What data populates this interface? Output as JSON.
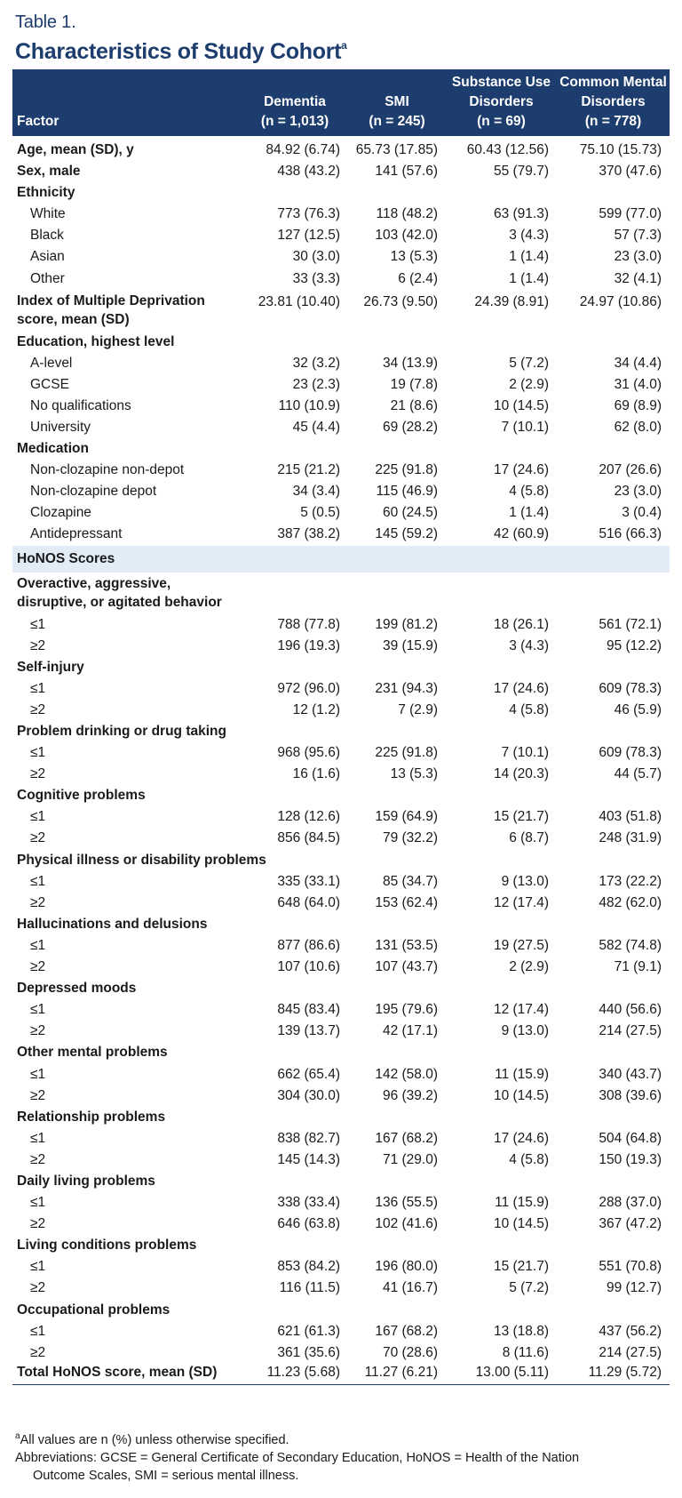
{
  "table_label": "Table 1.",
  "title": "Characteristics of Study Cohort",
  "title_superscript": "a",
  "header": {
    "factor": "Factor",
    "columns": [
      {
        "name": [
          "Dementia"
        ],
        "n": "(n = 1,013)"
      },
      {
        "name": [
          "SMI"
        ],
        "n": "(n = 245)"
      },
      {
        "name": [
          "Substance Use",
          "Disorders"
        ],
        "n": "(n = 69)"
      },
      {
        "name": [
          "Common Mental",
          "Disorders"
        ],
        "n": "(n = 778)"
      }
    ]
  },
  "rows": [
    {
      "label": "Age, mean (SD), y",
      "type": "bold",
      "values": [
        "84.92 (6.74)",
        "65.73 (17.85)",
        "60.43 (12.56)",
        "75.10 (15.73)"
      ]
    },
    {
      "label": "Sex, male",
      "type": "bold",
      "values": [
        "438 (43.2)",
        "141 (57.6)",
        "55 (79.7)",
        "370 (47.6)"
      ]
    },
    {
      "label": "Ethnicity",
      "type": "group"
    },
    {
      "label": "White",
      "type": "sub",
      "values": [
        "773 (76.3)",
        "118 (48.2)",
        "63 (91.3)",
        "599 (77.0)"
      ]
    },
    {
      "label": "Black",
      "type": "sub",
      "values": [
        "127 (12.5)",
        "103 (42.0)",
        "3 (4.3)",
        "57 (7.3)"
      ]
    },
    {
      "label": "Asian",
      "type": "sub",
      "values": [
        "30 (3.0)",
        "13 (5.3)",
        "1 (1.4)",
        "23 (3.0)"
      ]
    },
    {
      "label": "Other",
      "type": "sub",
      "values": [
        "33 (3.3)",
        "6 (2.4)",
        "1 (1.4)",
        "32 (4.1)"
      ]
    },
    {
      "label": "Index of Multiple Deprivation score, mean (SD)",
      "type": "bold-wrap",
      "values": [
        "23.81 (10.40)",
        "26.73 (9.50)",
        "24.39 (8.91)",
        "24.97 (10.86)"
      ]
    },
    {
      "label": "Education, highest level",
      "type": "group"
    },
    {
      "label": "A-level",
      "type": "sub",
      "values": [
        "32 (3.2)",
        "34 (13.9)",
        "5 (7.2)",
        "34 (4.4)"
      ]
    },
    {
      "label": "GCSE",
      "type": "sub",
      "values": [
        "23 (2.3)",
        "19 (7.8)",
        "2 (2.9)",
        "31 (4.0)"
      ]
    },
    {
      "label": "No qualifications",
      "type": "sub",
      "values": [
        "110 (10.9)",
        "21 (8.6)",
        "10 (14.5)",
        "69 (8.9)"
      ]
    },
    {
      "label": "University",
      "type": "sub",
      "values": [
        "45 (4.4)",
        "69 (28.2)",
        "7 (10.1)",
        "62 (8.0)"
      ]
    },
    {
      "label": "Medication",
      "type": "group"
    },
    {
      "label": "Non-clozapine non-depot",
      "type": "sub",
      "values": [
        "215 (21.2)",
        "225 (91.8)",
        "17 (24.6)",
        "207 (26.6)"
      ]
    },
    {
      "label": "Non-clozapine depot",
      "type": "sub",
      "values": [
        "34 (3.4)",
        "115 (46.9)",
        "4 (5.8)",
        "23 (3.0)"
      ]
    },
    {
      "label": "Clozapine",
      "type": "sub",
      "values": [
        "5 (0.5)",
        "60 (24.5)",
        "1 (1.4)",
        "3 (0.4)"
      ]
    },
    {
      "label": "Antidepressant",
      "type": "sub",
      "values": [
        "387 (38.2)",
        "145 (59.2)",
        "42 (60.9)",
        "516 (66.3)"
      ]
    },
    {
      "label": "HoNOS Scores",
      "type": "section"
    },
    {
      "label": "Overactive, aggressive, disruptive, or agitated behavior",
      "type": "group-wrap"
    },
    {
      "label": "≤1",
      "type": "sub",
      "values": [
        "788 (77.8)",
        "199 (81.2)",
        "18 (26.1)",
        "561 (72.1)"
      ]
    },
    {
      "label": "≥2",
      "type": "sub",
      "values": [
        "196 (19.3)",
        "39 (15.9)",
        "3 (4.3)",
        "95 (12.2)"
      ]
    },
    {
      "label": "Self-injury",
      "type": "group"
    },
    {
      "label": "≤1",
      "type": "sub",
      "values": [
        "972 (96.0)",
        "231 (94.3)",
        "17 (24.6)",
        "609 (78.3)"
      ]
    },
    {
      "label": "≥2",
      "type": "sub",
      "values": [
        "12 (1.2)",
        "7 (2.9)",
        "4 (5.8)",
        "46 (5.9)"
      ]
    },
    {
      "label": "Problem drinking or drug taking",
      "type": "group"
    },
    {
      "label": "≤1",
      "type": "sub",
      "values": [
        "968 (95.6)",
        "225 (91.8)",
        "7 (10.1)",
        "609 (78.3)"
      ]
    },
    {
      "label": "≥2",
      "type": "sub",
      "values": [
        "16 (1.6)",
        "13 (5.3)",
        "14 (20.3)",
        "44 (5.7)"
      ]
    },
    {
      "label": "Cognitive problems",
      "type": "group"
    },
    {
      "label": "≤1",
      "type": "sub",
      "values": [
        "128 (12.6)",
        "159 (64.9)",
        "15 (21.7)",
        "403 (51.8)"
      ]
    },
    {
      "label": "≥2",
      "type": "sub",
      "values": [
        "856 (84.5)",
        "79 (32.2)",
        "6 (8.7)",
        "248 (31.9)"
      ]
    },
    {
      "label": "Physical illness or disability problems",
      "type": "group"
    },
    {
      "label": "≤1",
      "type": "sub",
      "values": [
        "335 (33.1)",
        "85 (34.7)",
        "9 (13.0)",
        "173 (22.2)"
      ]
    },
    {
      "label": "≥2",
      "type": "sub",
      "values": [
        "648 (64.0)",
        "153 (62.4)",
        "12 (17.4)",
        "482 (62.0)"
      ]
    },
    {
      "label": "Hallucinations and delusions",
      "type": "group"
    },
    {
      "label": "≤1",
      "type": "sub",
      "values": [
        "877 (86.6)",
        "131 (53.5)",
        "19 (27.5)",
        "582 (74.8)"
      ]
    },
    {
      "label": "≥2",
      "type": "sub",
      "values": [
        "107 (10.6)",
        "107 (43.7)",
        "2 (2.9)",
        "71 (9.1)"
      ]
    },
    {
      "label": "Depressed moods",
      "type": "group"
    },
    {
      "label": "≤1",
      "type": "sub",
      "values": [
        "845 (83.4)",
        "195 (79.6)",
        "12 (17.4)",
        "440 (56.6)"
      ]
    },
    {
      "label": "≥2",
      "type": "sub",
      "values": [
        "139 (13.7)",
        "42 (17.1)",
        "9 (13.0)",
        "214 (27.5)"
      ]
    },
    {
      "label": "Other mental problems",
      "type": "group"
    },
    {
      "label": "≤1",
      "type": "sub",
      "values": [
        "662 (65.4)",
        "142 (58.0)",
        "11 (15.9)",
        "340 (43.7)"
      ]
    },
    {
      "label": "≥2",
      "type": "sub",
      "values": [
        "304 (30.0)",
        "96 (39.2)",
        "10 (14.5)",
        "308 (39.6)"
      ]
    },
    {
      "label": "Relationship problems",
      "type": "group"
    },
    {
      "label": "≤1",
      "type": "sub",
      "values": [
        "838 (82.7)",
        "167 (68.2)",
        "17 (24.6)",
        "504 (64.8)"
      ]
    },
    {
      "label": "≥2",
      "type": "sub",
      "values": [
        "145 (14.3)",
        "71 (29.0)",
        "4 (5.8)",
        "150 (19.3)"
      ]
    },
    {
      "label": "Daily living problems",
      "type": "group"
    },
    {
      "label": "≤1",
      "type": "sub",
      "values": [
        "338 (33.4)",
        "136 (55.5)",
        "11 (15.9)",
        "288 (37.0)"
      ]
    },
    {
      "label": "≥2",
      "type": "sub",
      "values": [
        "646 (63.8)",
        "102 (41.6)",
        "10 (14.5)",
        "367 (47.2)"
      ]
    },
    {
      "label": "Living conditions problems",
      "type": "group"
    },
    {
      "label": "≤1",
      "type": "sub",
      "values": [
        "853 (84.2)",
        "196 (80.0)",
        "15 (21.7)",
        "551 (70.8)"
      ]
    },
    {
      "label": "≥2",
      "type": "sub",
      "values": [
        "116 (11.5)",
        "41 (16.7)",
        "5 (7.2)",
        "99 (12.7)"
      ]
    },
    {
      "label": "Occupational problems",
      "type": "group"
    },
    {
      "label": "≤1",
      "type": "sub",
      "values": [
        "621 (61.3)",
        "167 (68.2)",
        "13 (18.8)",
        "437 (56.2)"
      ]
    },
    {
      "label": "≥2",
      "type": "sub",
      "values": [
        "361 (35.6)",
        "70 (28.6)",
        "8 (11.6)",
        "214 (27.5)"
      ]
    },
    {
      "label": "Total HoNOS score, mean (SD)",
      "type": "bold",
      "values": [
        "11.23 (5.68)",
        "11.27 (6.21)",
        "13.00 (5.11)",
        "11.29 (5.72)"
      ]
    }
  ],
  "footnote": {
    "marker": "a",
    "note": "All values are n (%) unless otherwise specified.",
    "abbreviations_line1": "Abbreviations: GCSE = General Certificate of Secondary Education, HoNOS = Health of the Nation",
    "abbreviations_line2": "Outcome Scales, SMI = serious mental illness."
  },
  "colors": {
    "header_bg": "#1d3d6e",
    "title": "#1d3d6e",
    "section_bg": "#e1ecf7"
  }
}
